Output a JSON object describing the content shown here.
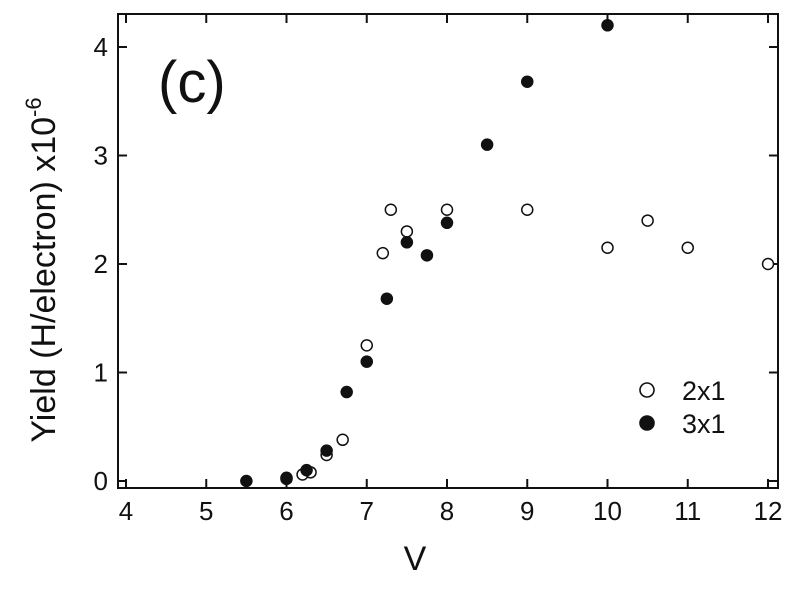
{
  "chart_data": {
    "type": "scatter",
    "panel_label": "(c)",
    "xlabel": "V",
    "ylabel_main": "Yield (H/electron) x10",
    "ylabel_exp": "-6",
    "xlim": [
      4,
      12
    ],
    "ylim": [
      0,
      4.2
    ],
    "x_ticks": [
      4,
      5,
      6,
      7,
      8,
      9,
      10,
      11,
      12
    ],
    "y_ticks": [
      0,
      1,
      2,
      3,
      4
    ],
    "grid": false,
    "legend_position": "bottom-right",
    "series": [
      {
        "name": "2x1",
        "marker": "open-circle",
        "color": "#111111",
        "points": [
          [
            6.0,
            0.02
          ],
          [
            6.2,
            0.06
          ],
          [
            6.3,
            0.08
          ],
          [
            6.5,
            0.24
          ],
          [
            6.7,
            0.38
          ],
          [
            7.0,
            1.25
          ],
          [
            7.2,
            2.1
          ],
          [
            7.3,
            2.5
          ],
          [
            7.5,
            2.3
          ],
          [
            8.0,
            2.5
          ],
          [
            9.0,
            2.5
          ],
          [
            10.0,
            2.15
          ],
          [
            10.5,
            2.4
          ],
          [
            11.0,
            2.15
          ],
          [
            12.0,
            2.0
          ]
        ]
      },
      {
        "name": "3x1",
        "marker": "filled-circle",
        "color": "#111111",
        "points": [
          [
            5.5,
            0.0
          ],
          [
            6.0,
            0.03
          ],
          [
            6.25,
            0.1
          ],
          [
            6.5,
            0.28
          ],
          [
            6.75,
            0.82
          ],
          [
            7.0,
            1.1
          ],
          [
            7.25,
            1.68
          ],
          [
            7.5,
            2.2
          ],
          [
            7.75,
            2.08
          ],
          [
            8.0,
            2.38
          ],
          [
            8.5,
            3.1
          ],
          [
            9.0,
            3.68
          ],
          [
            10.0,
            4.2
          ]
        ]
      }
    ]
  }
}
